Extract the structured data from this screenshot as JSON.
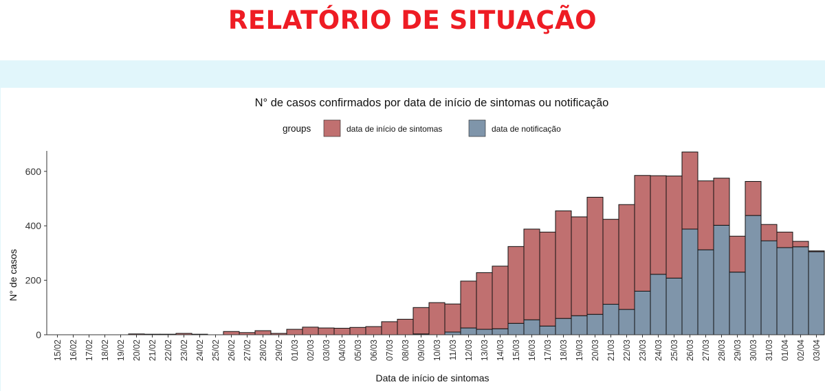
{
  "header": {
    "title": "RELATÓRIO DE SITUAÇÃO"
  },
  "colors": {
    "title": "#ee1c24",
    "band": "#e1f6fb",
    "sintomas": "#c07070",
    "notificacao": "#7f95aa"
  },
  "chart_data": {
    "type": "bar",
    "stacked": true,
    "title": "N° de casos confirmados por data de início de sintomas ou notificação",
    "xlabel": "Data de início de sintomas",
    "ylabel": "N° de casos",
    "ylim": [
      0,
      670
    ],
    "yticks": [
      0,
      200,
      400,
      600
    ],
    "grid": false,
    "legend": {
      "title": "groups",
      "placement": "top"
    },
    "categories": [
      "15/02",
      "16/02",
      "17/02",
      "18/02",
      "19/02",
      "20/02",
      "21/02",
      "22/02",
      "23/02",
      "24/02",
      "25/02",
      "26/02",
      "27/02",
      "28/02",
      "29/02",
      "01/03",
      "02/03",
      "03/03",
      "04/03",
      "05/03",
      "06/03",
      "07/03",
      "08/03",
      "09/03",
      "10/03",
      "11/03",
      "12/03",
      "13/03",
      "14/03",
      "15/03",
      "16/03",
      "17/03",
      "18/03",
      "19/03",
      "20/03",
      "21/03",
      "22/03",
      "23/03",
      "24/03",
      "25/03",
      "26/03",
      "27/03",
      "28/03",
      "29/03",
      "30/03",
      "31/03",
      "01/04",
      "02/04",
      "03/04"
    ],
    "series": [
      {
        "name": "data de notificação",
        "color": "#7f95aa",
        "values": [
          0,
          0,
          0,
          0,
          0,
          0,
          0,
          0,
          0,
          0,
          0,
          0,
          0,
          0,
          0,
          0,
          0,
          0,
          0,
          0,
          0,
          0,
          0,
          3,
          0,
          10,
          25,
          20,
          22,
          42,
          55,
          32,
          60,
          70,
          75,
          112,
          93,
          160,
          222,
          208,
          388,
          312,
          402,
          230,
          438,
          345,
          320,
          323,
          305
        ]
      },
      {
        "name": "data de início de sintomas",
        "color": "#c07070",
        "values": [
          0,
          0,
          0,
          0,
          0,
          3,
          2,
          2,
          5,
          2,
          0,
          12,
          8,
          15,
          5,
          20,
          28,
          25,
          24,
          27,
          30,
          48,
          57,
          97,
          118,
          103,
          172,
          208,
          230,
          282,
          333,
          345,
          395,
          363,
          430,
          312,
          385,
          425,
          362,
          375,
          283,
          253,
          173,
          132,
          125,
          60,
          57,
          20,
          3
        ]
      }
    ]
  }
}
